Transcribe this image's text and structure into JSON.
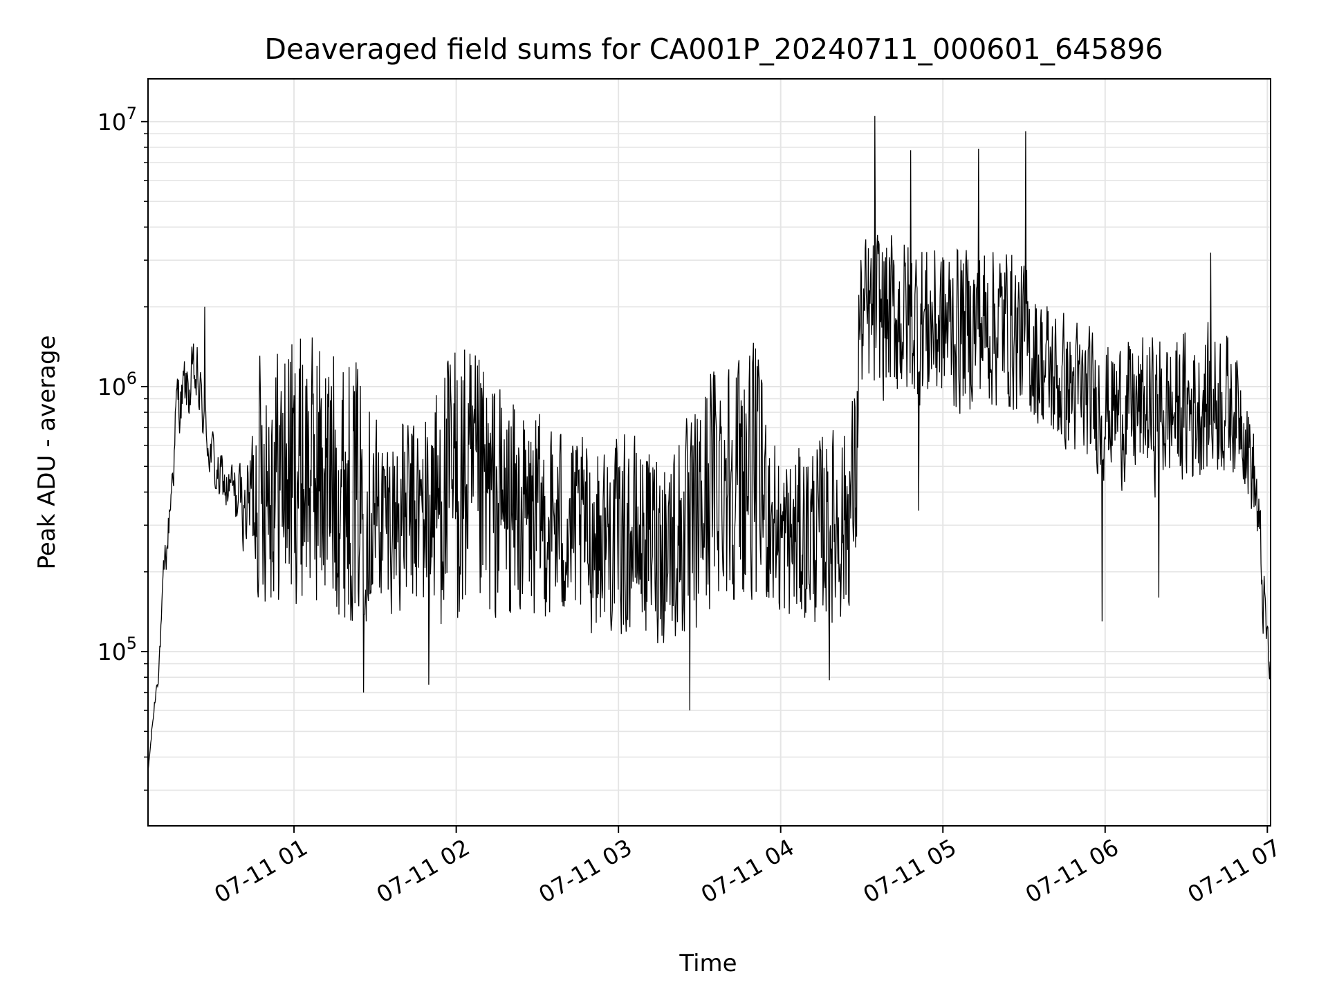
{
  "chart_data": {
    "type": "line",
    "title": "Deaveraged field sums for CA001P_20240711_000601_645896",
    "xlabel": "Time",
    "ylabel": "Peak ADU - average",
    "yscale": "log",
    "ylim": [
      22000,
      14500000
    ],
    "xlim_hours": [
      0.1,
      7.02
    ],
    "x_ticks": [
      "07-11 01",
      "07-11 02",
      "07-11 03",
      "07-11 04",
      "07-11 05",
      "07-11 06",
      "07-11 07"
    ],
    "y_ticks": [
      {
        "base": "10",
        "exp": "5",
        "value": 100000
      },
      {
        "base": "10",
        "exp": "6",
        "value": 1000000
      },
      {
        "base": "10",
        "exp": "7",
        "value": 10000000
      }
    ],
    "grid": true,
    "line_color": "#000000",
    "grid_color": "#e5e5e5",
    "series": [
      {
        "name": "",
        "envelope": [
          {
            "hour": 0.1,
            "low": 30000,
            "high": 40000,
            "noise": 0.15
          },
          {
            "hour": 0.16,
            "low": 60000,
            "high": 120000,
            "noise": 0.25
          },
          {
            "hour": 0.22,
            "low": 150000,
            "high": 450000,
            "noise": 0.35
          },
          {
            "hour": 0.28,
            "low": 500000,
            "high": 1500000,
            "noise": 0.45
          },
          {
            "hour": 0.4,
            "low": 600000,
            "high": 1800000,
            "noise": 0.45
          },
          {
            "hour": 0.52,
            "low": 300000,
            "high": 700000,
            "noise": 0.45
          },
          {
            "hour": 0.7,
            "low": 200000,
            "high": 600000,
            "noise": 0.5
          },
          {
            "hour": 0.78,
            "low": 150000,
            "high": 1400000,
            "noise": 1.0
          },
          {
            "hour": 1.1,
            "low": 150000,
            "high": 1600000,
            "noise": 1.0
          },
          {
            "hour": 1.4,
            "low": 120000,
            "high": 1300000,
            "noise": 0.95
          },
          {
            "hour": 1.55,
            "low": 130000,
            "high": 800000,
            "noise": 0.8
          },
          {
            "hour": 1.8,
            "low": 120000,
            "high": 900000,
            "noise": 0.9
          },
          {
            "hour": 2.0,
            "low": 120000,
            "high": 1600000,
            "noise": 1.0
          },
          {
            "hour": 2.4,
            "low": 120000,
            "high": 900000,
            "noise": 0.9
          },
          {
            "hour": 2.8,
            "low": 110000,
            "high": 700000,
            "noise": 0.85
          },
          {
            "hour": 3.2,
            "low": 100000,
            "high": 700000,
            "noise": 0.85
          },
          {
            "hour": 3.45,
            "low": 90000,
            "high": 800000,
            "noise": 0.9
          },
          {
            "hour": 3.6,
            "low": 150000,
            "high": 1500000,
            "noise": 0.95
          },
          {
            "hour": 3.85,
            "low": 150000,
            "high": 1500000,
            "noise": 0.95
          },
          {
            "hour": 4.0,
            "low": 110000,
            "high": 600000,
            "noise": 0.85
          },
          {
            "hour": 4.4,
            "low": 120000,
            "high": 800000,
            "noise": 0.9
          },
          {
            "hour": 4.47,
            "low": 180000,
            "high": 1200000,
            "noise": 0.9
          },
          {
            "hour": 4.48,
            "low": 700000,
            "high": 4000000,
            "noise": 0.75
          },
          {
            "hour": 4.6,
            "low": 800000,
            "high": 4500000,
            "noise": 0.8
          },
          {
            "hour": 5.0,
            "low": 700000,
            "high": 4000000,
            "noise": 0.8
          },
          {
            "hour": 5.4,
            "low": 750000,
            "high": 4000000,
            "noise": 0.8
          },
          {
            "hour": 5.7,
            "low": 500000,
            "high": 2200000,
            "noise": 0.75
          },
          {
            "hour": 6.0,
            "low": 400000,
            "high": 1700000,
            "noise": 0.75
          },
          {
            "hour": 6.4,
            "low": 350000,
            "high": 1800000,
            "noise": 0.75
          },
          {
            "hour": 6.7,
            "low": 400000,
            "high": 2000000,
            "noise": 0.75
          },
          {
            "hour": 6.85,
            "low": 400000,
            "high": 1600000,
            "noise": 0.7
          },
          {
            "hour": 6.93,
            "low": 200000,
            "high": 800000,
            "noise": 0.6
          },
          {
            "hour": 6.97,
            "low": 100000,
            "high": 300000,
            "noise": 0.55
          },
          {
            "hour": 7.02,
            "low": 55000,
            "high": 110000,
            "noise": 0.45
          }
        ],
        "spikes": [
          {
            "hour": 0.45,
            "value": 2000000
          },
          {
            "hour": 1.43,
            "value": 70000
          },
          {
            "hour": 1.83,
            "value": 75000
          },
          {
            "hour": 3.44,
            "value": 60000
          },
          {
            "hour": 4.3,
            "value": 78000
          },
          {
            "hour": 4.58,
            "value": 10500000
          },
          {
            "hour": 4.8,
            "value": 7800000
          },
          {
            "hour": 4.85,
            "value": 340000
          },
          {
            "hour": 5.22,
            "value": 7900000
          },
          {
            "hour": 5.51,
            "value": 9200000
          },
          {
            "hour": 5.98,
            "value": 130000
          },
          {
            "hour": 6.33,
            "value": 160000
          },
          {
            "hour": 6.65,
            "value": 3200000
          }
        ]
      }
    ]
  }
}
